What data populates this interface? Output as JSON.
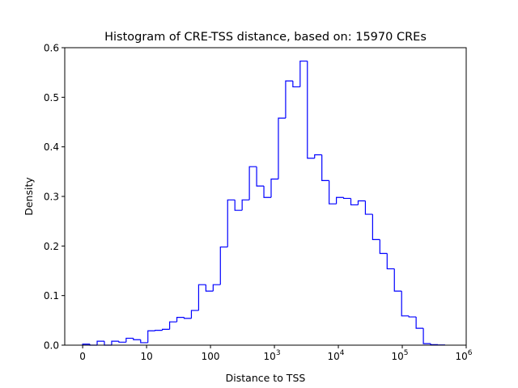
{
  "chart_data": {
    "type": "histogram",
    "title": "Histogram of CRE-TSS distance, based on: 15970 CREs",
    "xlabel": "Distance to TSS",
    "ylabel": "Density",
    "x_scale": "symlog",
    "x_linthresh": 10,
    "xlim": [
      -2.8,
      1000000
    ],
    "ylim": [
      0,
      0.6
    ],
    "bin_range": [
      0,
      468000
    ],
    "bin_count": 50,
    "histtype": "step",
    "color": "#0000ff",
    "grid": false,
    "x_ticks": [
      {
        "value": 0,
        "label": "0"
      },
      {
        "value": 10,
        "label": "10"
      },
      {
        "value": 100,
        "label": "100"
      },
      {
        "value": 1000,
        "label": "10",
        "exp": "3"
      },
      {
        "value": 10000,
        "label": "10",
        "exp": "4"
      },
      {
        "value": 100000,
        "label": "10",
        "exp": "5"
      },
      {
        "value": 1000000,
        "label": "10",
        "exp": "6"
      }
    ],
    "y_ticks": [
      "0.0",
      "0.1",
      "0.2",
      "0.3",
      "0.4",
      "0.5",
      "0.6"
    ],
    "values": [
      0.002,
      0,
      0.008,
      0,
      0.008,
      0.006,
      0.014,
      0.011,
      0.005,
      0.029,
      0.03,
      0.032,
      0.047,
      0.056,
      0.054,
      0.07,
      0.122,
      0.109,
      0.122,
      0.198,
      0.293,
      0.272,
      0.293,
      0.36,
      0.321,
      0.298,
      0.335,
      0.458,
      0.533,
      0.521,
      0.573,
      0.377,
      0.384,
      0.332,
      0.285,
      0.298,
      0.296,
      0.283,
      0.291,
      0.264,
      0.213,
      0.185,
      0.154,
      0.109,
      0.059,
      0.057,
      0.034,
      0.003,
      0.001,
      0.0005
    ]
  }
}
